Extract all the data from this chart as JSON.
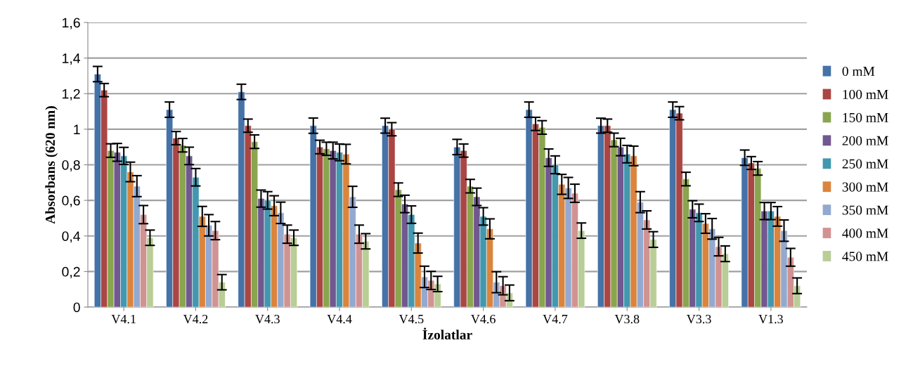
{
  "chart_data": {
    "type": "bar",
    "xlabel": "İzolatlar",
    "ylabel": "Absorbans (620 nm)",
    "categories": [
      "V4.1",
      "V4.2",
      "V4.3",
      "V4.4",
      "V4.5",
      "V4.6",
      "V4.7",
      "V3.8",
      "V3.3",
      "V1.3"
    ],
    "series": [
      {
        "name": "0 mM",
        "color": "#4572a7",
        "values": [
          1.31,
          1.11,
          1.21,
          1.02,
          1.02,
          0.9,
          1.11,
          1.02,
          1.11,
          0.84
        ],
        "errors": [
          0.043,
          0.043,
          0.043,
          0.043,
          0.042,
          0.043,
          0.043,
          0.042,
          0.043,
          0.043
        ]
      },
      {
        "name": "100 mM",
        "color": "#aa4643",
        "values": [
          1.22,
          0.95,
          1.02,
          0.9,
          1.0,
          0.88,
          1.03,
          1.02,
          1.09,
          0.81
        ],
        "errors": [
          0.037,
          0.037,
          0.037,
          0.038,
          0.037,
          0.037,
          0.037,
          0.037,
          0.037,
          0.036
        ]
      },
      {
        "name": "150 mM",
        "color": "#89a54e",
        "values": [
          0.88,
          0.91,
          0.93,
          0.89,
          0.66,
          0.68,
          1.01,
          0.94,
          0.72,
          0.78
        ],
        "errors": [
          0.038,
          0.038,
          0.038,
          0.037,
          0.038,
          0.038,
          0.038,
          0.038,
          0.038,
          0.038
        ]
      },
      {
        "name": "200 mM",
        "color": "#71588f",
        "values": [
          0.87,
          0.85,
          0.61,
          0.88,
          0.58,
          0.62,
          0.84,
          0.9,
          0.55,
          0.54
        ],
        "errors": [
          0.05,
          0.049,
          0.048,
          0.047,
          0.049,
          0.049,
          0.049,
          0.049,
          0.048,
          0.048
        ]
      },
      {
        "name": "250 mM",
        "color": "#4198af",
        "values": [
          0.85,
          0.73,
          0.6,
          0.87,
          0.52,
          0.51,
          0.8,
          0.86,
          0.53,
          0.54
        ],
        "errors": [
          0.048,
          0.049,
          0.049,
          0.047,
          0.049,
          0.049,
          0.05,
          0.049,
          0.049,
          0.048
        ]
      },
      {
        "name": "300 mM",
        "color": "#db843d",
        "values": [
          0.76,
          0.51,
          0.57,
          0.86,
          0.36,
          0.44,
          0.69,
          0.85,
          0.47,
          0.51
        ],
        "errors": [
          0.055,
          0.056,
          0.056,
          0.055,
          0.056,
          0.056,
          0.056,
          0.055,
          0.055,
          0.055
        ]
      },
      {
        "name": "350 mM",
        "color": "#93a9cf",
        "values": [
          0.68,
          0.46,
          0.53,
          0.62,
          0.17,
          0.14,
          0.67,
          0.59,
          0.44,
          0.43
        ],
        "errors": [
          0.059,
          0.06,
          0.06,
          0.059,
          0.06,
          0.059,
          0.059,
          0.059,
          0.058,
          0.06
        ]
      },
      {
        "name": "400 mM",
        "color": "#d19392",
        "values": [
          0.52,
          0.43,
          0.41,
          0.41,
          0.15,
          0.12,
          0.64,
          0.49,
          0.34,
          0.28
        ],
        "errors": [
          0.051,
          0.051,
          0.051,
          0.051,
          0.051,
          0.051,
          0.051,
          0.051,
          0.052,
          0.05
        ]
      },
      {
        "name": "450 mM",
        "color": "#b9cd96",
        "values": [
          0.39,
          0.14,
          0.39,
          0.37,
          0.13,
          0.08,
          0.43,
          0.38,
          0.3,
          0.12
        ],
        "errors": [
          0.043,
          0.043,
          0.043,
          0.043,
          0.043,
          0.044,
          0.043,
          0.044,
          0.044,
          0.044
        ]
      }
    ],
    "ylim": [
      0,
      1.6
    ],
    "yticks": [
      {
        "value": 0,
        "label": "0"
      },
      {
        "value": 0.2,
        "label": "0,2"
      },
      {
        "value": 0.4,
        "label": "0,4"
      },
      {
        "value": 0.6,
        "label": "0,6"
      },
      {
        "value": 0.8,
        "label": "0,8"
      },
      {
        "value": 1,
        "label": "1"
      },
      {
        "value": 1.2,
        "label": "1,2"
      },
      {
        "value": 1.4,
        "label": "1,4"
      },
      {
        "value": 1.6,
        "label": "1,6"
      }
    ],
    "grid": "y",
    "legend": "right"
  }
}
